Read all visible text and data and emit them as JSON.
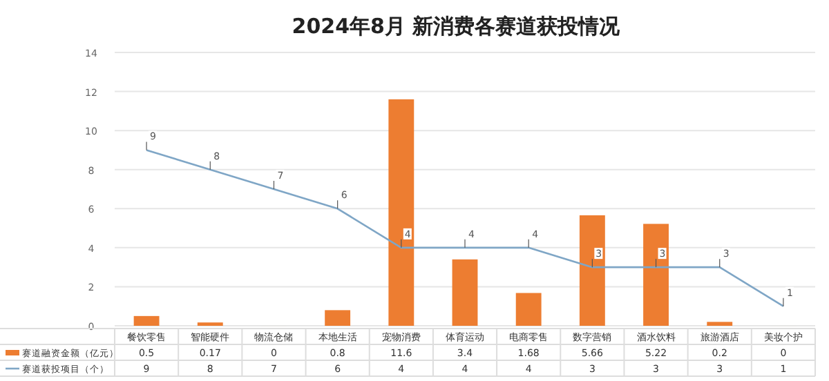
{
  "chart_data": {
    "type": "bar",
    "title": "2024年8月 新消费各赛道获投情况",
    "categories": [
      "餐饮零售",
      "智能硬件",
      "物流仓储",
      "本地生活",
      "宠物消费",
      "体育运动",
      "电商零售",
      "数字营销",
      "酒水饮料",
      "旅游酒店",
      "美妆个护"
    ],
    "series": [
      {
        "name": "赛道融资金额（亿元）",
        "color": "#ed7d31",
        "values": [
          0.5,
          0.17,
          0,
          0.8,
          11.6,
          3.4,
          1.68,
          5.66,
          5.22,
          0.2,
          0
        ]
      },
      {
        "name": "赛道获投项目（个）",
        "type": "line",
        "color": "#7fa6c6",
        "values": [
          9,
          8,
          7,
          6,
          4,
          4,
          4,
          3,
          3,
          3,
          1
        ],
        "value_labels": [
          "9",
          "8",
          "7",
          "6",
          "4",
          "4",
          "4",
          "3",
          "3",
          "3",
          "1"
        ]
      }
    ],
    "ylim": [
      0,
      14
    ],
    "yticks": [
      0,
      2,
      4,
      6,
      8,
      10,
      12,
      14
    ],
    "grid": "y",
    "legend": "bottom left",
    "data_labels": true,
    "marker": "none",
    "line_style": "solid"
  }
}
